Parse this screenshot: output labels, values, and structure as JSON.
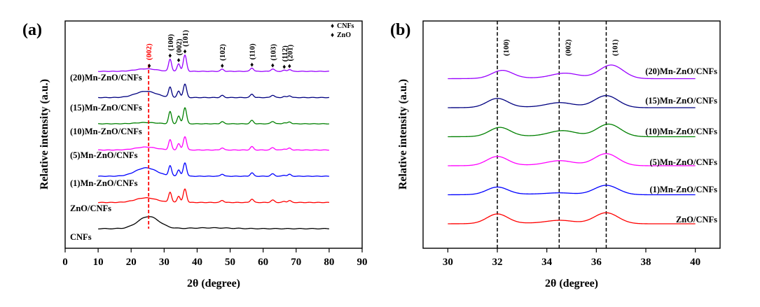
{
  "chart_data": [
    {
      "type": "line",
      "panel": "(a)",
      "xlabel": "2θ (degree)",
      "ylabel": "Relative intensity (a.u.)",
      "xlim": [
        0,
        90
      ],
      "xticks": [
        0,
        10,
        20,
        30,
        40,
        50,
        60,
        70,
        80,
        90
      ],
      "legend": [
        {
          "symbol": "♦",
          "label": "CNFs"
        },
        {
          "symbol": "♦",
          "label": "ZnO"
        }
      ],
      "reference_line": {
        "x": 25.3,
        "label": "(002)",
        "color": "#ff0000"
      },
      "peak_labels": [
        {
          "x": 31.8,
          "label": "(100)"
        },
        {
          "x": 34.4,
          "label": "(002)"
        },
        {
          "x": 36.3,
          "label": "(101)"
        },
        {
          "x": 47.6,
          "label": "(102)"
        },
        {
          "x": 56.6,
          "label": "(110)"
        },
        {
          "x": 62.9,
          "label": "(103)"
        },
        {
          "x": 66.4,
          "label": "(112)"
        },
        {
          "x": 68.0,
          "label": "(201)"
        }
      ],
      "series": [
        {
          "name": "CNFs",
          "label": "CNFs",
          "color": "#000000",
          "offset": 0,
          "type": "cnf"
        },
        {
          "name": "ZnO/CNFs",
          "label": "ZnO/CNFs",
          "color": "#ff0000",
          "offset": 1,
          "type": "zno"
        },
        {
          "name": "(1)Mn-ZnO/CNFs",
          "label": "(1)Mn-ZnO/CNFs",
          "color": "#0000ff",
          "offset": 2,
          "type": "zno"
        },
        {
          "name": "(5)Mn-ZnO/CNFs",
          "label": "(5)Mn-ZnO/CNFs",
          "color": "#ff00ff",
          "offset": 3,
          "type": "zno"
        },
        {
          "name": "(10)Mn-ZnO/CNFs",
          "label": "(10)Mn-ZnO/CNFs",
          "color": "#008000",
          "offset": 4,
          "type": "zno"
        },
        {
          "name": "(15)Mn-ZnO/CNFs",
          "label": "(15)Mn-ZnO/CNFs",
          "color": "#000080",
          "offset": 5,
          "type": "zno"
        },
        {
          "name": "(20)Mn-ZnO/CNFs",
          "label": "(20)Mn-ZnO/CNFs",
          "color": "#9900ff",
          "offset": 6,
          "type": "zno"
        }
      ]
    },
    {
      "type": "line",
      "panel": "(b)",
      "xlabel": "2θ (degree)",
      "ylabel": "Relative intensity (a.u.)",
      "xlim": [
        29,
        41
      ],
      "xticks": [
        30,
        32,
        34,
        36,
        38,
        40
      ],
      "reference_lines": [
        {
          "x": 32.0,
          "label": "(100)"
        },
        {
          "x": 34.5,
          "label": "(002)"
        },
        {
          "x": 36.4,
          "label": "(101)"
        }
      ],
      "series": [
        {
          "name": "ZnO/CNFs",
          "label": "ZnO/CNFs",
          "color": "#ff0000",
          "offset": 0,
          "shift": 0.0
        },
        {
          "name": "(1)Mn-ZnO/CNFs",
          "label": "(1)Mn-ZnO/CNFs",
          "color": "#0000ff",
          "offset": 1,
          "shift": 0.0
        },
        {
          "name": "(5)Mn-ZnO/CNFs",
          "label": "(5)Mn-ZnO/CNFs",
          "color": "#ff00ff",
          "offset": 2,
          "shift": 0.0
        },
        {
          "name": "(10)Mn-ZnO/CNFs",
          "label": "(10)Mn-ZnO/CNFs",
          "color": "#008000",
          "offset": 3,
          "shift": 0.1
        },
        {
          "name": "(15)Mn-ZnO/CNFs",
          "label": "(15)Mn-ZnO/CNFs",
          "color": "#000080",
          "offset": 4,
          "shift": 0.0
        },
        {
          "name": "(20)Mn-ZnO/CNFs",
          "label": "(20)Mn-ZnO/CNFs",
          "color": "#9900ff",
          "offset": 5,
          "shift": 0.2
        }
      ]
    }
  ]
}
